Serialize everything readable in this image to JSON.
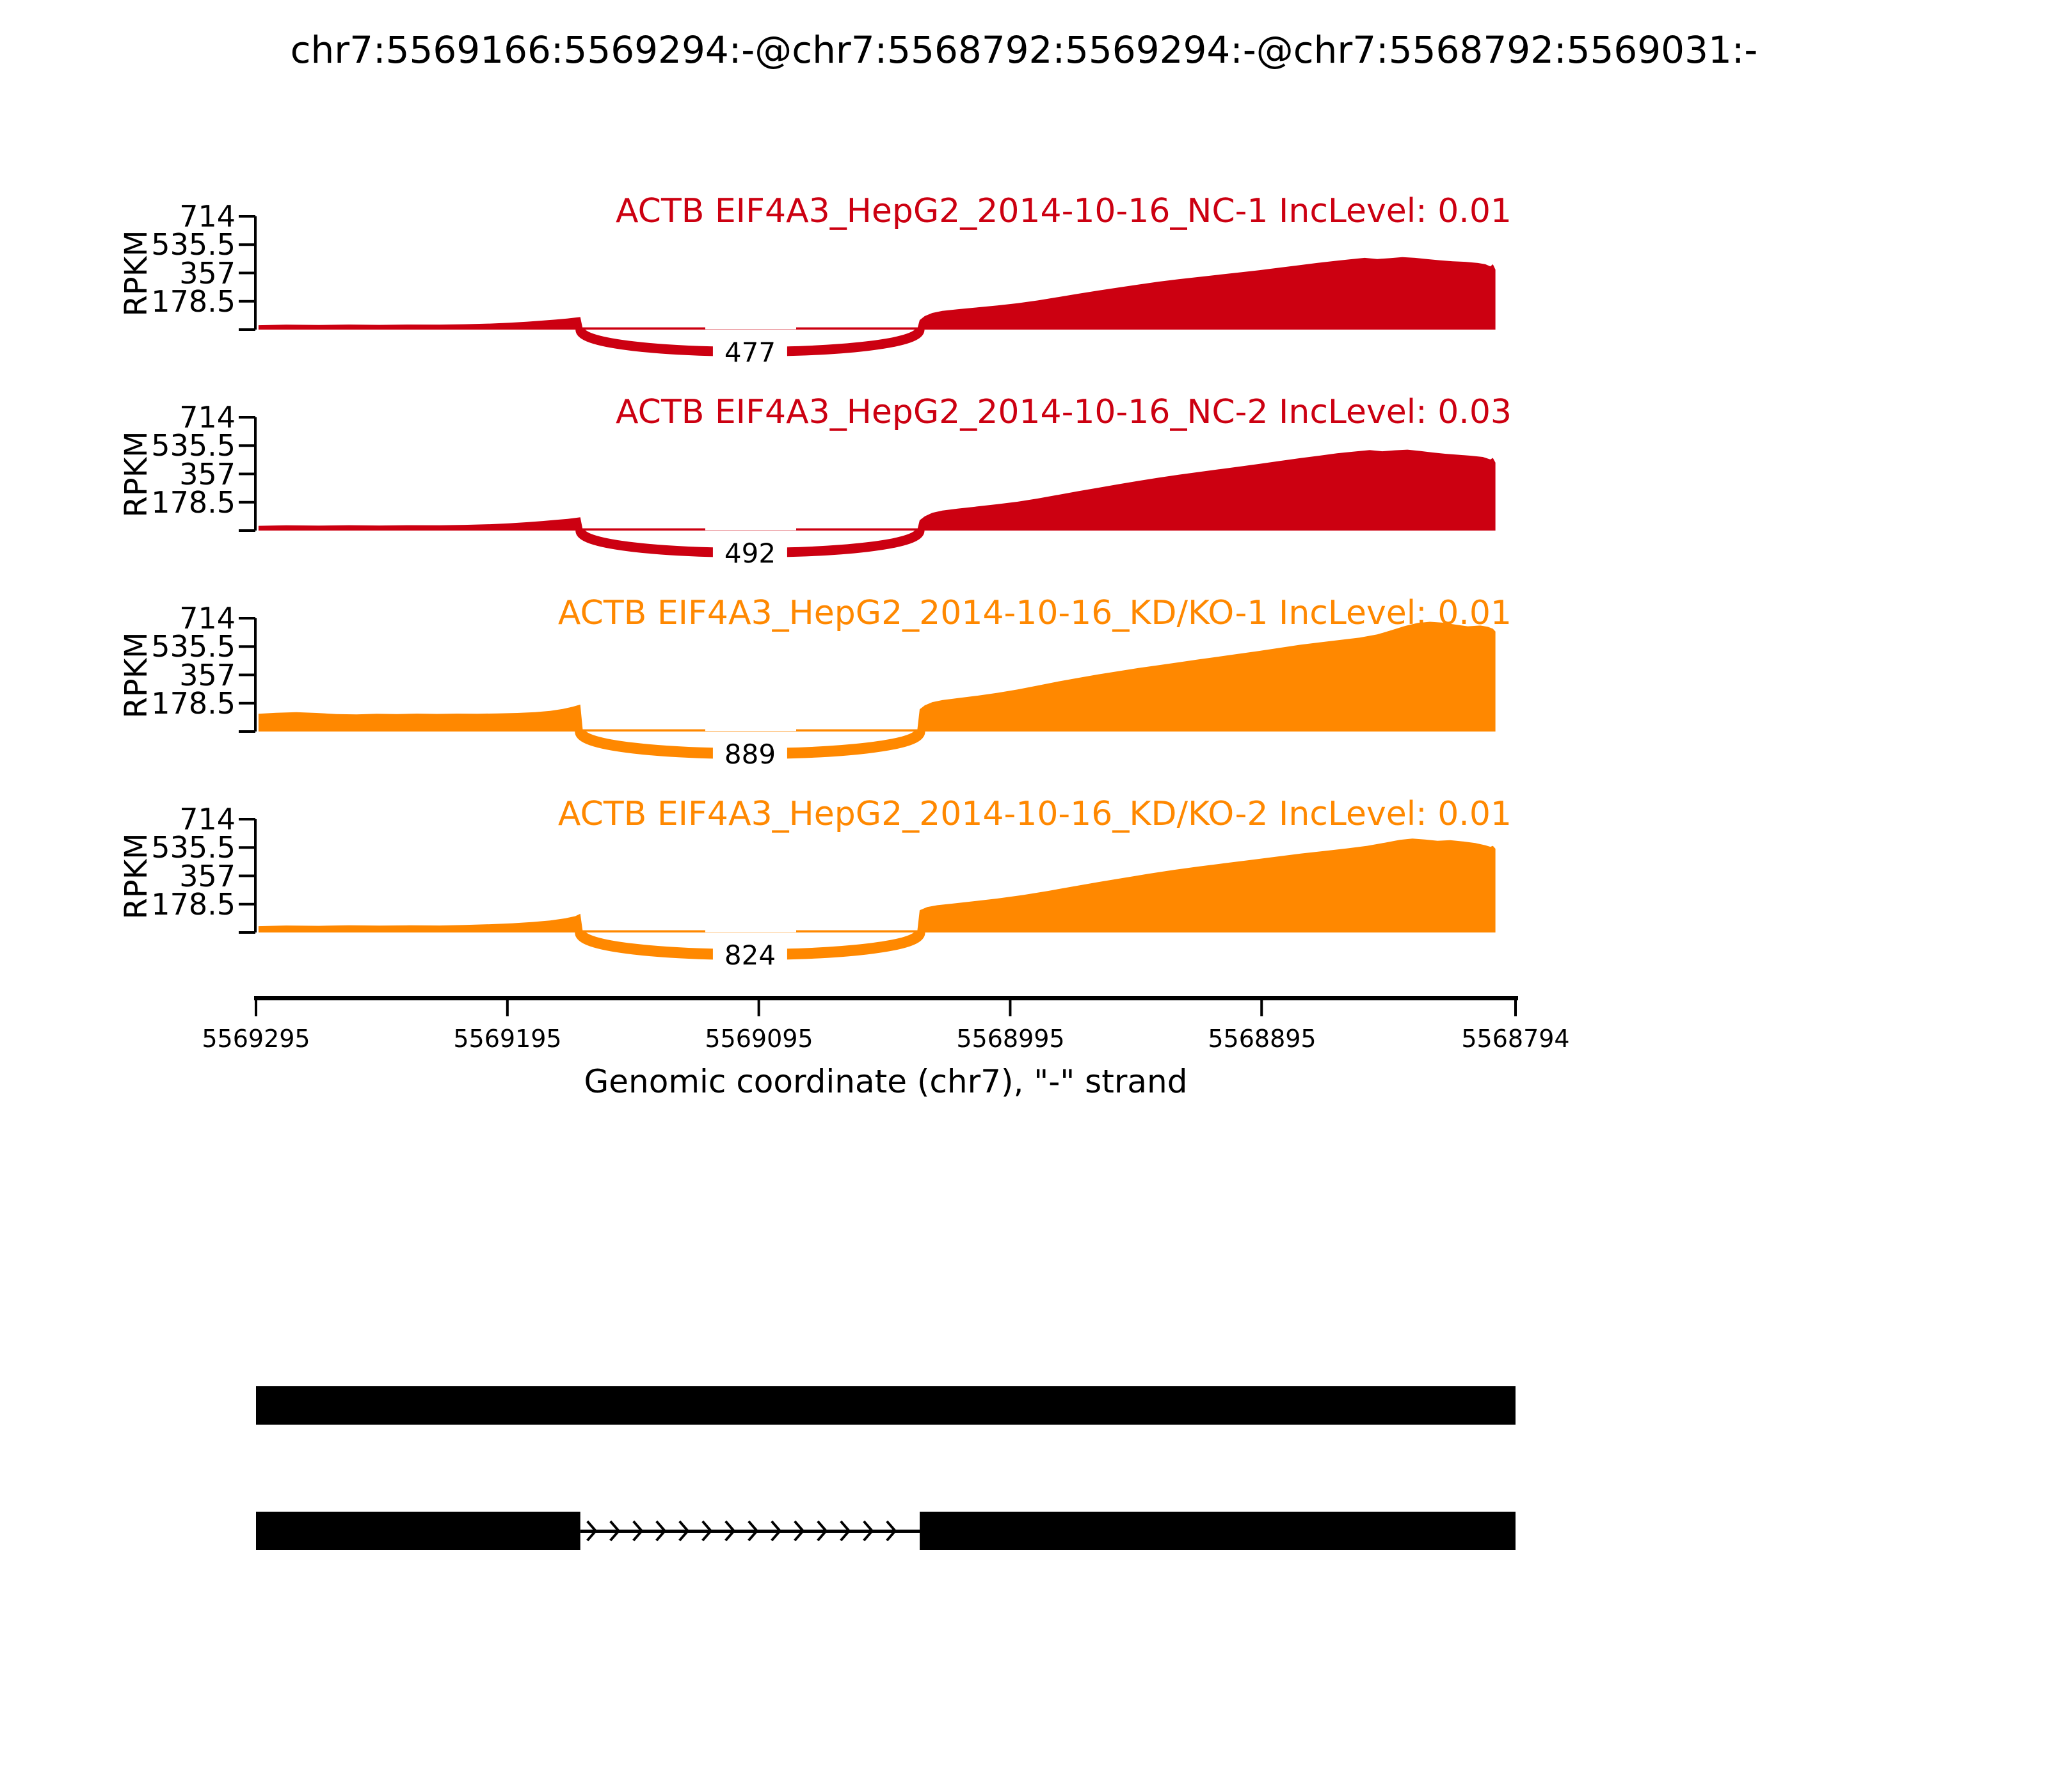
{
  "title": "chr7:5569166:5569294:-@chr7:5568792:5569294:-@chr7:5568792:5569031:-",
  "y_axis": {
    "label": "RPKM",
    "tick_labels": [
      "714",
      "535.5",
      "357",
      "178.5"
    ],
    "tick_values": [
      714,
      535.5,
      357,
      178.5
    ],
    "max": 714
  },
  "x_axis": {
    "label": "Genomic coordinate (chr7), \"-\" strand",
    "tick_labels": [
      "5569295",
      "5569195",
      "5569095",
      "5568995",
      "5568895",
      "5568794"
    ],
    "tick_values": [
      5569295,
      5569195,
      5569095,
      5568995,
      5568895,
      5568794
    ],
    "range": [
      5569295,
      5568794
    ]
  },
  "colors": {
    "nc": "#CC0011",
    "kd": "#FF8800",
    "gene_model": "#000000",
    "background": "#ffffff"
  },
  "chart_data": {
    "type": "area",
    "subtype": "sashimi-plot",
    "x_range": [
      5569295,
      5568794
    ],
    "y_max": 714,
    "tracks": [
      {
        "title": "ACTB EIF4A3_HepG2_2014-10-16_NC-1 IncLevel: 0.01",
        "group": "NC",
        "inc_level": 0.01,
        "color": "#CC0011",
        "junction": {
          "from": 5569166,
          "to": 5569031,
          "count": 477
        },
        "coverage": [
          [
            5569294,
            28
          ],
          [
            5569283,
            31
          ],
          [
            5569270,
            29
          ],
          [
            5569258,
            32
          ],
          [
            5569246,
            30
          ],
          [
            5569234,
            32
          ],
          [
            5569222,
            31
          ],
          [
            5569212,
            34
          ],
          [
            5569202,
            38
          ],
          [
            5569194,
            43
          ],
          [
            5569187,
            50
          ],
          [
            5569181,
            57
          ],
          [
            5569176,
            63
          ],
          [
            5569171,
            70
          ],
          [
            5569168,
            76
          ],
          [
            5569166,
            79
          ],
          [
            5569165,
            2
          ],
          [
            5569032,
            2
          ],
          [
            5569031,
            60
          ],
          [
            5569029,
            85
          ],
          [
            5569026,
            105
          ],
          [
            5569022,
            118
          ],
          [
            5569016,
            128
          ],
          [
            5569008,
            140
          ],
          [
            5569000,
            152
          ],
          [
            5568992,
            166
          ],
          [
            5568984,
            184
          ],
          [
            5568976,
            205
          ],
          [
            5568968,
            226
          ],
          [
            5568960,
            246
          ],
          [
            5568952,
            265
          ],
          [
            5568944,
            284
          ],
          [
            5568936,
            302
          ],
          [
            5568928,
            318
          ],
          [
            5568920,
            332
          ],
          [
            5568912,
            346
          ],
          [
            5568904,
            360
          ],
          [
            5568896,
            374
          ],
          [
            5568888,
            390
          ],
          [
            5568880,
            406
          ],
          [
            5568873,
            420
          ],
          [
            5568866,
            433
          ],
          [
            5568860,
            443
          ],
          [
            5568854,
            452
          ],
          [
            5568849,
            445
          ],
          [
            5568844,
            450
          ],
          [
            5568839,
            457
          ],
          [
            5568834,
            452
          ],
          [
            5568829,
            444
          ],
          [
            5568824,
            437
          ],
          [
            5568819,
            431
          ],
          [
            5568814,
            427
          ],
          [
            5568809,
            420
          ],
          [
            5568806,
            412
          ],
          [
            5568804,
            398
          ],
          [
            5568803,
            412
          ],
          [
            5568802,
            378
          ]
        ]
      },
      {
        "title": "ACTB EIF4A3_HepG2_2014-10-16_NC-2 IncLevel: 0.03",
        "group": "NC",
        "inc_level": 0.03,
        "color": "#CC0011",
        "junction": {
          "from": 5569166,
          "to": 5569031,
          "count": 492
        },
        "coverage": [
          [
            5569294,
            30
          ],
          [
            5569283,
            33
          ],
          [
            5569270,
            31
          ],
          [
            5569258,
            34
          ],
          [
            5569246,
            32
          ],
          [
            5569234,
            34
          ],
          [
            5569222,
            33
          ],
          [
            5569212,
            36
          ],
          [
            5569202,
            40
          ],
          [
            5569194,
            46
          ],
          [
            5569187,
            53
          ],
          [
            5569181,
            60
          ],
          [
            5569176,
            67
          ],
          [
            5569171,
            74
          ],
          [
            5569168,
            80
          ],
          [
            5569166,
            84
          ],
          [
            5569165,
            2
          ],
          [
            5569032,
            2
          ],
          [
            5569031,
            65
          ],
          [
            5569029,
            90
          ],
          [
            5569026,
            112
          ],
          [
            5569022,
            126
          ],
          [
            5569016,
            138
          ],
          [
            5569008,
            152
          ],
          [
            5569000,
            166
          ],
          [
            5568992,
            182
          ],
          [
            5568984,
            202
          ],
          [
            5568976,
            225
          ],
          [
            5568968,
            248
          ],
          [
            5568960,
            270
          ],
          [
            5568952,
            292
          ],
          [
            5568944,
            313
          ],
          [
            5568936,
            333
          ],
          [
            5568928,
            352
          ],
          [
            5568920,
            369
          ],
          [
            5568912,
            386
          ],
          [
            5568904,
            403
          ],
          [
            5568896,
            420
          ],
          [
            5568888,
            438
          ],
          [
            5568880,
            456
          ],
          [
            5568872,
            472
          ],
          [
            5568865,
            487
          ],
          [
            5568858,
            498
          ],
          [
            5568852,
            507
          ],
          [
            5568847,
            500
          ],
          [
            5568842,
            506
          ],
          [
            5568837,
            510
          ],
          [
            5568832,
            502
          ],
          [
            5568827,
            492
          ],
          [
            5568822,
            484
          ],
          [
            5568817,
            478
          ],
          [
            5568812,
            472
          ],
          [
            5568807,
            464
          ],
          [
            5568804,
            448
          ],
          [
            5568803,
            458
          ],
          [
            5568802,
            428
          ]
        ]
      },
      {
        "title": "ACTB EIF4A3_HepG2_2014-10-16_KD/KO-1 IncLevel: 0.01",
        "group": "KD/KO",
        "inc_level": 0.01,
        "color": "#FF8800",
        "junction": {
          "from": 5569166,
          "to": 5569031,
          "count": 889
        },
        "coverage": [
          [
            5569294,
            112
          ],
          [
            5569287,
            118
          ],
          [
            5569279,
            122
          ],
          [
            5569271,
            117
          ],
          [
            5569263,
            110
          ],
          [
            5569255,
            108
          ],
          [
            5569247,
            112
          ],
          [
            5569239,
            110
          ],
          [
            5569231,
            113
          ],
          [
            5569223,
            111
          ],
          [
            5569215,
            113
          ],
          [
            5569207,
            112
          ],
          [
            5569199,
            114
          ],
          [
            5569191,
            117
          ],
          [
            5569184,
            122
          ],
          [
            5569178,
            130
          ],
          [
            5569173,
            142
          ],
          [
            5569169,
            156
          ],
          [
            5569166,
            170
          ],
          [
            5569165,
            3
          ],
          [
            5569032,
            3
          ],
          [
            5569031,
            140
          ],
          [
            5569029,
            165
          ],
          [
            5569026,
            185
          ],
          [
            5569022,
            198
          ],
          [
            5569016,
            210
          ],
          [
            5569008,
            226
          ],
          [
            5569000,
            244
          ],
          [
            5568992,
            265
          ],
          [
            5568984,
            290
          ],
          [
            5568976,
            315
          ],
          [
            5568968,
            338
          ],
          [
            5568960,
            360
          ],
          [
            5568952,
            380
          ],
          [
            5568944,
            400
          ],
          [
            5568936,
            418
          ],
          [
            5568928,
            436
          ],
          [
            5568920,
            455
          ],
          [
            5568912,
            472
          ],
          [
            5568904,
            490
          ],
          [
            5568896,
            508
          ],
          [
            5568888,
            527
          ],
          [
            5568880,
            546
          ],
          [
            5568872,
            562
          ],
          [
            5568864,
            577
          ],
          [
            5568856,
            592
          ],
          [
            5568849,
            612
          ],
          [
            5568843,
            640
          ],
          [
            5568838,
            665
          ],
          [
            5568833,
            684
          ],
          [
            5568828,
            692
          ],
          [
            5568823,
            686
          ],
          [
            5568818,
            674
          ],
          [
            5568813,
            663
          ],
          [
            5568808,
            668
          ],
          [
            5568805,
            660
          ],
          [
            5568803,
            648
          ],
          [
            5568802,
            630
          ]
        ]
      },
      {
        "title": "ACTB EIF4A3_HepG2_2014-10-16_KD/KO-2 IncLevel: 0.01",
        "group": "KD/KO",
        "inc_level": 0.01,
        "color": "#FF8800",
        "junction": {
          "from": 5569166,
          "to": 5569031,
          "count": 824
        },
        "coverage": [
          [
            5569294,
            40
          ],
          [
            5569283,
            44
          ],
          [
            5569270,
            42
          ],
          [
            5569258,
            45
          ],
          [
            5569246,
            43
          ],
          [
            5569234,
            45
          ],
          [
            5569222,
            44
          ],
          [
            5569212,
            47
          ],
          [
            5569202,
            52
          ],
          [
            5569193,
            58
          ],
          [
            5569185,
            66
          ],
          [
            5569178,
            76
          ],
          [
            5569172,
            89
          ],
          [
            5569168,
            103
          ],
          [
            5569166,
            118
          ],
          [
            5569165,
            2
          ],
          [
            5569032,
            2
          ],
          [
            5569031,
            140
          ],
          [
            5569028,
            160
          ],
          [
            5569024,
            172
          ],
          [
            5569018,
            182
          ],
          [
            5569010,
            196
          ],
          [
            5569000,
            214
          ],
          [
            5568990,
            236
          ],
          [
            5568980,
            262
          ],
          [
            5568970,
            290
          ],
          [
            5568960,
            318
          ],
          [
            5568950,
            344
          ],
          [
            5568940,
            370
          ],
          [
            5568930,
            394
          ],
          [
            5568920,
            416
          ],
          [
            5568910,
            436
          ],
          [
            5568900,
            456
          ],
          [
            5568890,
            476
          ],
          [
            5568880,
            496
          ],
          [
            5568870,
            514
          ],
          [
            5568861,
            530
          ],
          [
            5568853,
            546
          ],
          [
            5568846,
            566
          ],
          [
            5568840,
            584
          ],
          [
            5568835,
            592
          ],
          [
            5568830,
            586
          ],
          [
            5568825,
            578
          ],
          [
            5568820,
            582
          ],
          [
            5568815,
            574
          ],
          [
            5568810,
            564
          ],
          [
            5568806,
            550
          ],
          [
            5568804,
            540
          ],
          [
            5568803,
            546
          ],
          [
            5568802,
            528
          ]
        ]
      }
    ]
  },
  "gene_model": {
    "color": "#000000",
    "isoforms": [
      {
        "exons": [
          [
            5569295,
            5568794
          ]
        ]
      },
      {
        "exons": [
          [
            5569295,
            5569166
          ],
          [
            5569031,
            5568794
          ]
        ],
        "intron": [
          5569166,
          5569031
        ],
        "arrow_direction": "right"
      }
    ]
  }
}
